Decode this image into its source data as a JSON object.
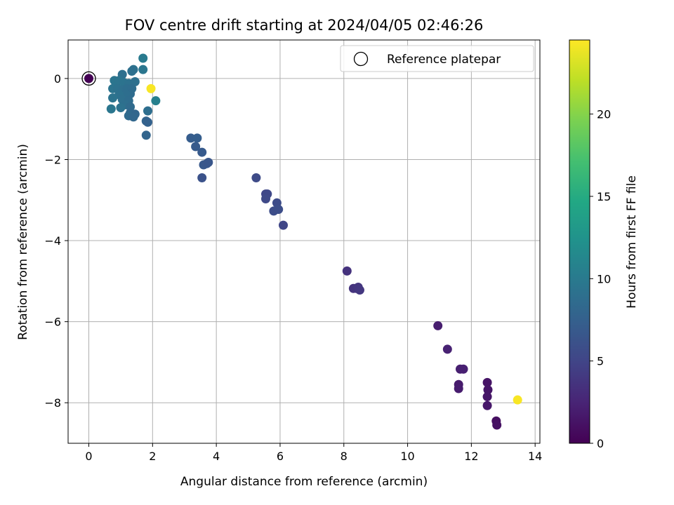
{
  "chart_data": {
    "type": "scatter",
    "title": "FOV centre drift starting at 2024/04/05 02:46:26",
    "xlabel": "Angular distance from reference (arcmin)",
    "ylabel": "Rotation from reference (arcmin)",
    "xlim": [
      -0.65,
      14.15
    ],
    "ylim": [
      -9.0,
      0.95
    ],
    "xticks": [
      0,
      2,
      4,
      6,
      8,
      10,
      12,
      14
    ],
    "yticks": [
      0,
      -2,
      -4,
      -6,
      -8
    ],
    "xtick_labels": [
      "0",
      "2",
      "4",
      "6",
      "8",
      "10",
      "12",
      "14"
    ],
    "ytick_labels": [
      "0",
      "−2",
      "−4",
      "−6",
      "−8"
    ],
    "grid": true,
    "colorbar": {
      "label": "Hours from first FF file",
      "colormap": "viridis",
      "range": [
        0,
        24.5
      ],
      "ticks": [
        0,
        5,
        10,
        15,
        20
      ],
      "tick_labels": [
        "0",
        "5",
        "10",
        "15",
        "20"
      ]
    },
    "legend": {
      "position": "top-right",
      "entries": [
        "Reference platepar"
      ]
    },
    "reference_point": {
      "x": 0.0,
      "y": 0.0,
      "hours": 0.0
    },
    "points": [
      {
        "x": 13.45,
        "y": -7.93,
        "hours": 24.3
      },
      {
        "x": 1.95,
        "y": -0.25,
        "hours": 24.3
      },
      {
        "x": 12.78,
        "y": -8.45,
        "hours": 1.0
      },
      {
        "x": 12.8,
        "y": -8.55,
        "hours": 1.1
      },
      {
        "x": 12.5,
        "y": -7.5,
        "hours": 1.3
      },
      {
        "x": 12.52,
        "y": -7.68,
        "hours": 1.4
      },
      {
        "x": 12.5,
        "y": -7.85,
        "hours": 1.5
      },
      {
        "x": 12.5,
        "y": -8.07,
        "hours": 1.6
      },
      {
        "x": 11.6,
        "y": -7.55,
        "hours": 1.8
      },
      {
        "x": 11.6,
        "y": -7.65,
        "hours": 1.9
      },
      {
        "x": 11.65,
        "y": -7.17,
        "hours": 2.1
      },
      {
        "x": 11.75,
        "y": -7.17,
        "hours": 2.2
      },
      {
        "x": 11.25,
        "y": -6.68,
        "hours": 2.3
      },
      {
        "x": 10.95,
        "y": -6.1,
        "hours": 2.0
      },
      {
        "x": 8.1,
        "y": -4.75,
        "hours": 3.5
      },
      {
        "x": 8.3,
        "y": -5.18,
        "hours": 3.6
      },
      {
        "x": 8.4,
        "y": -5.18,
        "hours": 3.7
      },
      {
        "x": 8.45,
        "y": -5.15,
        "hours": 3.8
      },
      {
        "x": 8.5,
        "y": -5.22,
        "hours": 3.9
      },
      {
        "x": 5.25,
        "y": -2.45,
        "hours": 5.5
      },
      {
        "x": 5.55,
        "y": -2.85,
        "hours": 5.2
      },
      {
        "x": 5.6,
        "y": -2.85,
        "hours": 5.3
      },
      {
        "x": 5.55,
        "y": -2.97,
        "hours": 5.4
      },
      {
        "x": 5.9,
        "y": -3.07,
        "hours": 5.6
      },
      {
        "x": 5.8,
        "y": -3.27,
        "hours": 5.7
      },
      {
        "x": 5.95,
        "y": -3.23,
        "hours": 5.8
      },
      {
        "x": 6.1,
        "y": -3.62,
        "hours": 5.1
      },
      {
        "x": 3.2,
        "y": -1.47,
        "hours": 7.2
      },
      {
        "x": 3.4,
        "y": -1.47,
        "hours": 7.3
      },
      {
        "x": 3.35,
        "y": -1.68,
        "hours": 7.0
      },
      {
        "x": 3.55,
        "y": -1.82,
        "hours": 6.9
      },
      {
        "x": 3.6,
        "y": -2.13,
        "hours": 6.7
      },
      {
        "x": 3.7,
        "y": -2.1,
        "hours": 6.6
      },
      {
        "x": 3.75,
        "y": -2.07,
        "hours": 6.5
      },
      {
        "x": 3.55,
        "y": -2.45,
        "hours": 6.2
      },
      {
        "x": 1.7,
        "y": 0.5,
        "hours": 10.0
      },
      {
        "x": 1.7,
        "y": 0.22,
        "hours": 9.6
      },
      {
        "x": 1.4,
        "y": 0.22,
        "hours": 9.2
      },
      {
        "x": 1.35,
        "y": 0.18,
        "hours": 9.0
      },
      {
        "x": 1.05,
        "y": 0.1,
        "hours": 8.9
      },
      {
        "x": 0.8,
        "y": -0.05,
        "hours": 9.5
      },
      {
        "x": 0.95,
        "y": -0.05,
        "hours": 9.4
      },
      {
        "x": 1.1,
        "y": -0.1,
        "hours": 9.3
      },
      {
        "x": 1.25,
        "y": -0.12,
        "hours": 9.1
      },
      {
        "x": 1.45,
        "y": -0.08,
        "hours": 9.0
      },
      {
        "x": 0.75,
        "y": -0.25,
        "hours": 9.4
      },
      {
        "x": 0.9,
        "y": -0.25,
        "hours": 9.2
      },
      {
        "x": 1.05,
        "y": -0.28,
        "hours": 9.0
      },
      {
        "x": 1.2,
        "y": -0.25,
        "hours": 8.8
      },
      {
        "x": 1.35,
        "y": -0.25,
        "hours": 8.7
      },
      {
        "x": 1.3,
        "y": -0.38,
        "hours": 8.6
      },
      {
        "x": 1.15,
        "y": -0.38,
        "hours": 8.8
      },
      {
        "x": 0.95,
        "y": -0.4,
        "hours": 9.1
      },
      {
        "x": 0.75,
        "y": -0.48,
        "hours": 9.3
      },
      {
        "x": 1.05,
        "y": -0.52,
        "hours": 9.0
      },
      {
        "x": 1.25,
        "y": -0.55,
        "hours": 8.7
      },
      {
        "x": 1.15,
        "y": -0.65,
        "hours": 8.9
      },
      {
        "x": 1.3,
        "y": -0.7,
        "hours": 8.5
      },
      {
        "x": 0.7,
        "y": -0.75,
        "hours": 9.6
      },
      {
        "x": 1.0,
        "y": -0.72,
        "hours": 9.2
      },
      {
        "x": 1.3,
        "y": -0.85,
        "hours": 8.2
      },
      {
        "x": 1.45,
        "y": -0.88,
        "hours": 8.0
      },
      {
        "x": 1.25,
        "y": -0.92,
        "hours": 8.4
      },
      {
        "x": 1.4,
        "y": -0.95,
        "hours": 8.1
      },
      {
        "x": 2.1,
        "y": -0.55,
        "hours": 10.6
      },
      {
        "x": 1.85,
        "y": -0.8,
        "hours": 8.8
      },
      {
        "x": 1.8,
        "y": -1.05,
        "hours": 7.8
      },
      {
        "x": 1.85,
        "y": -1.08,
        "hours": 7.6
      },
      {
        "x": 1.8,
        "y": -1.4,
        "hours": 7.9
      }
    ]
  }
}
